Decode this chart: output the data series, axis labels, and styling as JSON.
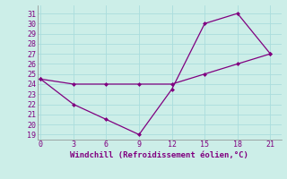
{
  "line1_x": [
    0,
    3,
    6,
    9,
    12,
    15,
    18,
    21
  ],
  "line1_y": [
    24.5,
    22.0,
    20.5,
    19.0,
    23.5,
    30.0,
    31.0,
    27.0
  ],
  "line2_x": [
    0,
    3,
    6,
    9,
    12,
    15,
    18,
    21
  ],
  "line2_y": [
    24.5,
    24.0,
    24.0,
    24.0,
    24.0,
    25.0,
    26.0,
    27.0
  ],
  "line_color": "#800080",
  "bg_color": "#cceee8",
  "grid_color": "#aadddd",
  "xlabel": "Windchill (Refroidissement éolien,°C)",
  "xlabel_color": "#800080",
  "xticks": [
    0,
    3,
    6,
    9,
    12,
    15,
    18,
    21
  ],
  "yticks": [
    19,
    20,
    21,
    22,
    23,
    24,
    25,
    26,
    27,
    28,
    29,
    30,
    31
  ],
  "ylim": [
    18.5,
    31.8
  ],
  "xlim": [
    -0.3,
    22.0
  ]
}
